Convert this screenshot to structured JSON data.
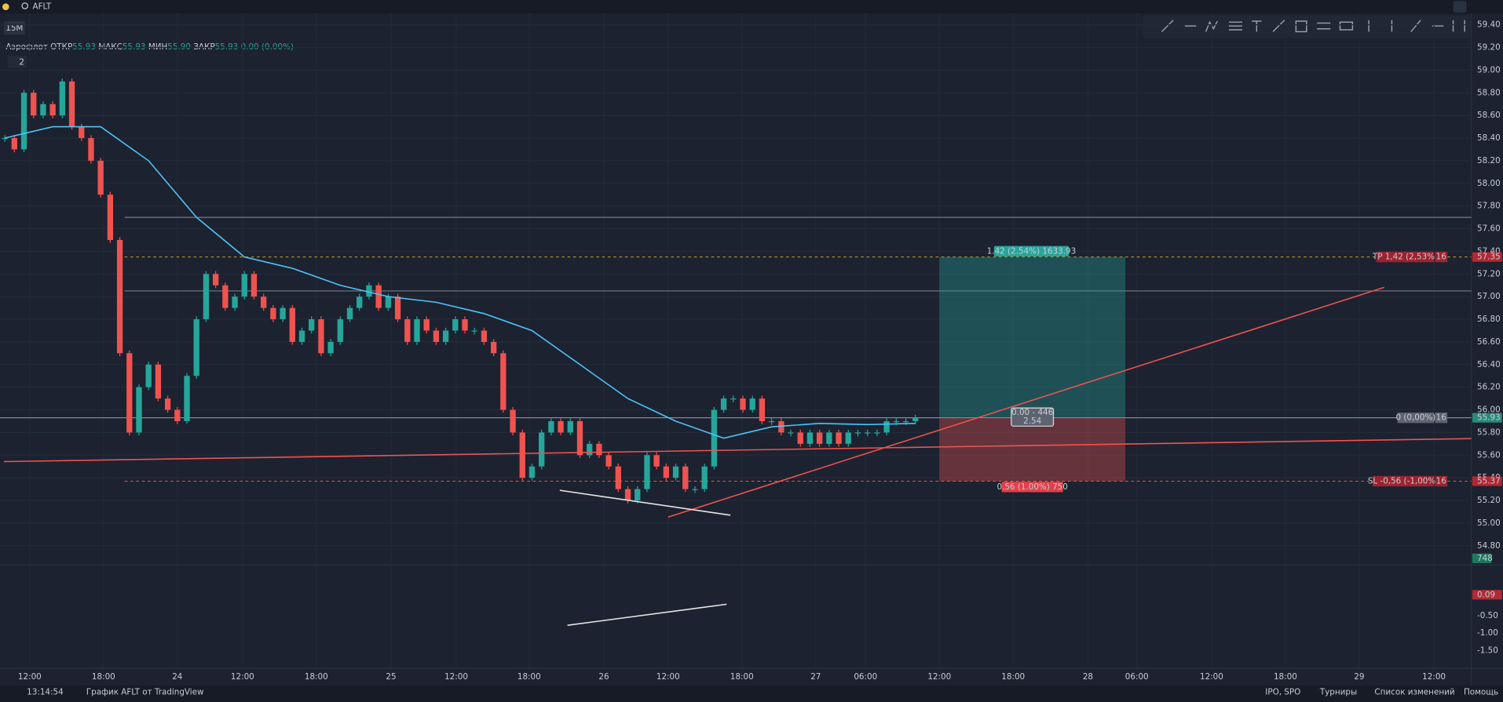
{
  "header": {
    "search": "AFLT",
    "interval": "15M",
    "indicator_count": "2"
  },
  "legend": {
    "name": "Аэрофлот",
    "open_label": "ОТКР",
    "open": "55.93",
    "high_label": "МАКС",
    "high": "55.93",
    "low_label": "МИН",
    "low": "55.90",
    "close_label": "ЗАКР",
    "close": "55.93",
    "change": "0.00 (0.00%)"
  },
  "chart_data": {
    "type": "candlestick",
    "values": [
      58.4,
      58.3,
      58.8,
      58.6,
      58.7,
      58.6,
      58.9,
      58.5,
      58.4,
      58.2,
      57.9,
      57.5,
      56.5,
      55.8,
      56.2,
      56.4,
      56.1,
      56.0,
      55.9,
      56.3,
      56.8,
      57.2,
      57.1,
      56.9,
      57.0,
      57.2,
      57.0,
      56.9,
      56.8,
      56.9,
      56.6,
      56.7,
      56.8,
      56.5,
      56.6,
      56.8,
      56.9,
      57.0,
      57.1,
      56.9,
      57.0,
      56.8,
      56.6,
      56.8,
      56.7,
      56.6,
      56.7,
      56.8,
      56.7,
      56.7,
      56.6,
      56.5,
      56.0,
      55.8,
      55.4,
      55.5,
      55.8,
      55.9,
      55.8,
      55.9,
      55.6,
      55.7,
      55.6,
      55.5,
      55.3,
      55.2,
      55.3,
      55.6,
      55.5,
      55.4,
      55.5,
      55.3,
      55.3,
      55.5,
      56.0,
      56.1,
      56.1,
      56.0,
      56.1,
      55.9,
      55.9,
      55.8,
      55.8,
      55.7,
      55.8,
      55.7,
      55.8,
      55.7,
      55.8,
      55.8,
      55.8,
      55.8,
      55.9,
      55.9,
      55.9,
      55.93
    ],
    "ma": [
      58.4,
      58.5,
      58.5,
      58.2,
      57.7,
      57.35,
      57.25,
      57.1,
      57.0,
      56.95,
      56.85,
      56.7,
      56.4,
      56.1,
      55.9,
      55.75,
      55.85,
      55.88,
      55.87,
      55.88
    ],
    "up_color": "#26a69a",
    "down_color": "#ef5350",
    "ma_color": "#4fc3f7",
    "ylim": [
      54.63,
      59.5
    ],
    "yticks": [
      {
        "value": 54.8,
        "label": "54.80"
      },
      {
        "value": 55.0,
        "label": "55.00"
      },
      {
        "value": 55.2,
        "label": "55.20"
      },
      {
        "value": 55.4,
        "label": "55.40"
      },
      {
        "value": 55.6,
        "label": "55.60"
      },
      {
        "value": 55.8,
        "label": "55.80"
      },
      {
        "value": 56.0,
        "label": "56.00"
      },
      {
        "value": 56.2,
        "label": "56.20"
      },
      {
        "value": 56.4,
        "label": "56.40"
      },
      {
        "value": 56.6,
        "label": "56.60"
      },
      {
        "value": 56.8,
        "label": "56.80"
      },
      {
        "value": 57.0,
        "label": "57.00"
      },
      {
        "value": 57.2,
        "label": "57.20"
      },
      {
        "value": 57.4,
        "label": "57.40"
      },
      {
        "value": 57.6,
        "label": "57.60"
      },
      {
        "value": 57.8,
        "label": "57.80"
      },
      {
        "value": 58.0,
        "label": "58.00"
      },
      {
        "value": 58.2,
        "label": "58.20"
      },
      {
        "value": 58.4,
        "label": "58.40"
      },
      {
        "value": 58.6,
        "label": "58.60"
      },
      {
        "value": 58.8,
        "label": "58.80"
      },
      {
        "value": 59.0,
        "label": "59.00"
      },
      {
        "value": 59.2,
        "label": "59.20"
      },
      {
        "value": 59.4,
        "label": "59.40"
      }
    ],
    "levels": [
      57.7,
      57.35,
      57.05,
      55.93,
      55.37
    ],
    "price_badges": [
      {
        "value": 57.35,
        "label": "57.35"
      },
      {
        "value": 55.93,
        "label": "55.93"
      },
      {
        "value": 55.37,
        "label": "55.37"
      }
    ],
    "time_labels": [
      "12:00",
      "18:00",
      "24",
      "12:00",
      "18:00",
      "25",
      "12:00",
      "18:00",
      "26",
      "12:00",
      "18:00",
      "27",
      "06:00",
      "12:00",
      "18:00",
      "28",
      "06:00",
      "12:00",
      "18:00",
      "29",
      "12:00"
    ],
    "volume_last": "748",
    "macd": {
      "ylim": [
        -2.0,
        0.88
      ],
      "yticks": [
        {
          "value": -0.5,
          "label": "-0.50"
        },
        {
          "value": -1.0,
          "label": "-1.00"
        },
        {
          "value": -1.5,
          "label": "-1.50"
        }
      ],
      "last": {
        "value": 0.09,
        "label": "0.09"
      }
    }
  },
  "position": {
    "profit": "1.42 (2.54%) 1633.93",
    "loss": "0.56 (1.00%) 750",
    "center_top": "0.00 - 446",
    "center_bottom": "2.54",
    "tp": "TP 1,42 (2,53%)",
    "sl": "SL -0,56 (-1,00%)",
    "entry": "0 (0,00%)",
    "qty": "16"
  },
  "footer": {
    "time": "13:14:54",
    "brand": "График AFLT от TradingView",
    "links": [
      "IPO, SPO",
      "Турниры",
      "Список изменений",
      "Помощь"
    ]
  }
}
